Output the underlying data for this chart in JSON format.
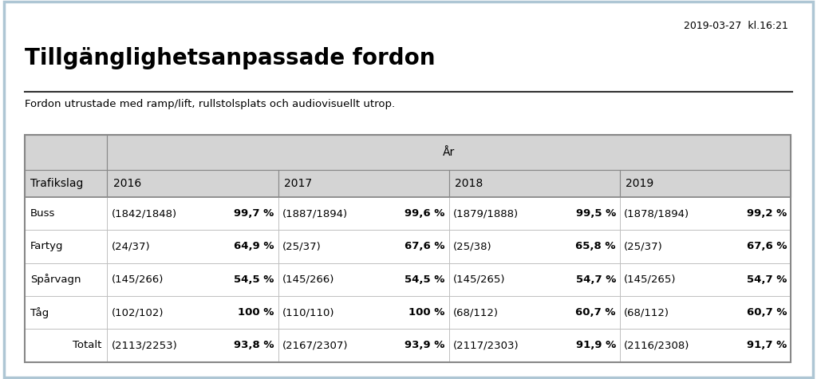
{
  "timestamp": "2019-03-27  kl.16:21",
  "title": "Tillgänglighetsanpassade fordon",
  "subtitle": "Fordon utrustade med ramp/lift, rullstolsplats och audiovisuellt utrop.",
  "col_header_group": "År",
  "col_header_label": "Trafikslag",
  "years": [
    "2016",
    "2017",
    "2018",
    "2019"
  ],
  "rows": [
    {
      "label": "Buss",
      "data": [
        {
          "fraction": "(1842/1848)",
          "pct": "99,7 %"
        },
        {
          "fraction": "(1887/1894)",
          "pct": "99,6 %"
        },
        {
          "fraction": "(1879/1888)",
          "pct": "99,5 %"
        },
        {
          "fraction": "(1878/1894)",
          "pct": "99,2 %"
        }
      ],
      "is_total": false
    },
    {
      "label": "Fartyg",
      "data": [
        {
          "fraction": "(24/37)",
          "pct": "64,9 %"
        },
        {
          "fraction": "(25/37)",
          "pct": "67,6 %"
        },
        {
          "fraction": "(25/38)",
          "pct": "65,8 %"
        },
        {
          "fraction": "(25/37)",
          "pct": "67,6 %"
        }
      ],
      "is_total": false
    },
    {
      "label": "Spårvagn",
      "data": [
        {
          "fraction": "(145/266)",
          "pct": "54,5 %"
        },
        {
          "fraction": "(145/266)",
          "pct": "54,5 %"
        },
        {
          "fraction": "(145/265)",
          "pct": "54,7 %"
        },
        {
          "fraction": "(145/265)",
          "pct": "54,7 %"
        }
      ],
      "is_total": false
    },
    {
      "label": "Tåg",
      "data": [
        {
          "fraction": "(102/102)",
          "pct": "100 %"
        },
        {
          "fraction": "(110/110)",
          "pct": "100 %"
        },
        {
          "fraction": "(68/112)",
          "pct": "60,7 %"
        },
        {
          "fraction": "(68/112)",
          "pct": "60,7 %"
        }
      ],
      "is_total": false
    },
    {
      "label": "Totalt",
      "data": [
        {
          "fraction": "(2113/2253)",
          "pct": "93,8 %"
        },
        {
          "fraction": "(2167/2307)",
          "pct": "93,9 %"
        },
        {
          "fraction": "(2117/2303)",
          "pct": "91,9 %"
        },
        {
          "fraction": "(2116/2308)",
          "pct": "91,7 %"
        }
      ],
      "is_total": true
    }
  ],
  "bg_color": "#ffffff",
  "outer_border_color": "#aec6d4",
  "table_header_bg": "#d4d4d4",
  "table_data_bg": "#ffffff",
  "table_border_dark": "#888888",
  "table_border_light": "#bbbbbb",
  "title_line_color": "#333333",
  "text_color": "#000000",
  "title_fontsize": 20,
  "subtitle_fontsize": 9.5,
  "timestamp_fontsize": 9,
  "table_fontsize": 9.5
}
